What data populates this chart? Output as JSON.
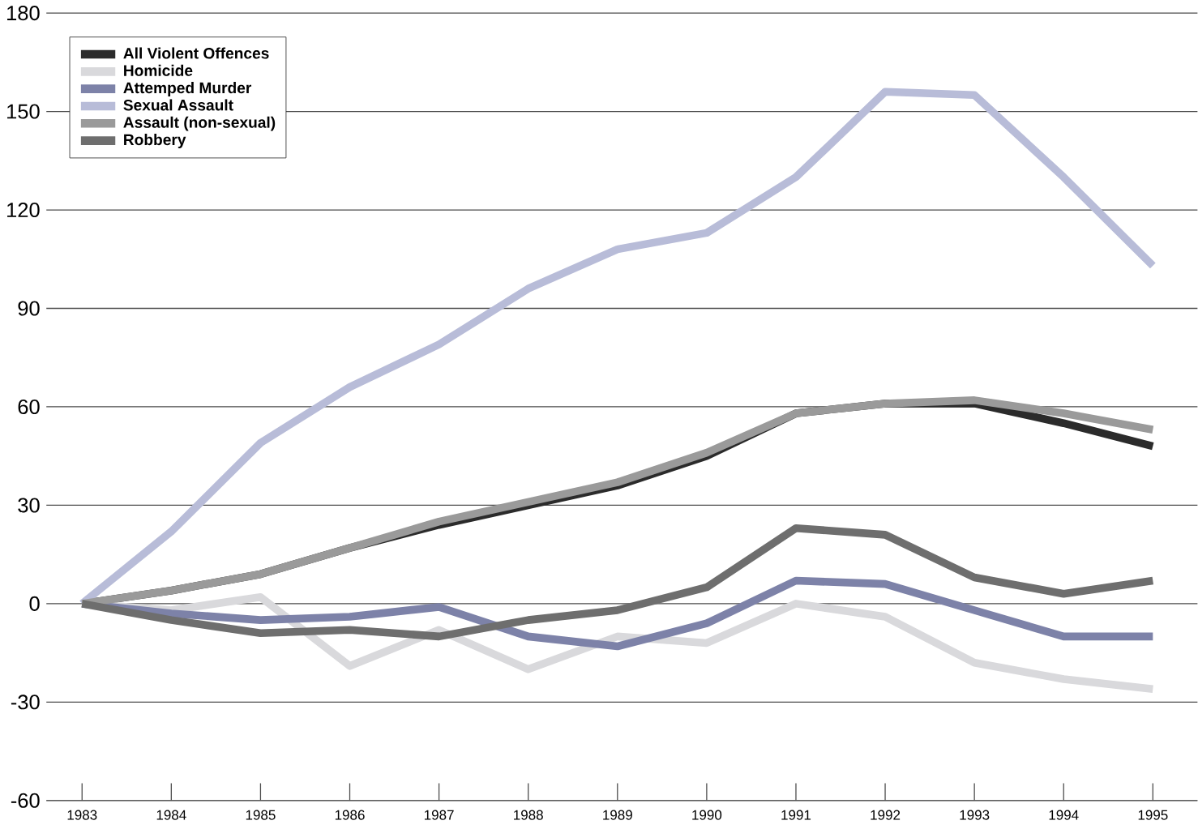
{
  "chart_data": {
    "type": "line",
    "x": [
      1983,
      1984,
      1985,
      1986,
      1987,
      1988,
      1989,
      1990,
      1991,
      1992,
      1993,
      1994,
      1995
    ],
    "series": [
      {
        "name": "Assault (non-sexual)",
        "color": "#9a9a9a",
        "values": [
          0,
          4,
          9,
          17,
          25,
          31,
          37,
          46,
          58,
          61,
          62,
          58,
          53
        ]
      },
      {
        "name": "All Violent Offences",
        "color": "#2b2b2b",
        "values": [
          0,
          4,
          9,
          17,
          24,
          30,
          36,
          45,
          58,
          61,
          61,
          55,
          48
        ]
      },
      {
        "name": "Homicide",
        "color": "#d9d9dc",
        "values": [
          0,
          -2,
          2,
          -19,
          -8,
          -20,
          -10,
          -12,
          0,
          -4,
          -18,
          -23,
          -26
        ]
      },
      {
        "name": "Attemped Murder",
        "color": "#7d82a8",
        "values": [
          0,
          -3,
          -5,
          -4,
          -1,
          -10,
          -13,
          -6,
          7,
          6,
          -2,
          -10,
          -10
        ]
      },
      {
        "name": "Sexual Assault",
        "color": "#b8bcd8",
        "values": [
          0,
          22,
          49,
          66,
          79,
          96,
          108,
          113,
          130,
          156,
          155,
          130,
          103
        ]
      },
      {
        "name": "Robbery",
        "color": "#6e6e6e",
        "values": [
          0,
          -5,
          -9,
          -8,
          -10,
          -5,
          -2,
          5,
          23,
          21,
          8,
          3,
          7
        ]
      }
    ],
    "xlim": [
      1982.6,
      1995.5
    ],
    "xticks": [
      1983,
      1984,
      1985,
      1986,
      1987,
      1988,
      1989,
      1990,
      1991,
      1992,
      1993,
      1994,
      1995
    ],
    "ylim": [
      -60,
      180
    ],
    "yticks": [
      -60,
      -30,
      0,
      30,
      60,
      90,
      120,
      150,
      180
    ],
    "grid": "y",
    "legend": "top left",
    "marker": "none",
    "line_style": "solid"
  }
}
